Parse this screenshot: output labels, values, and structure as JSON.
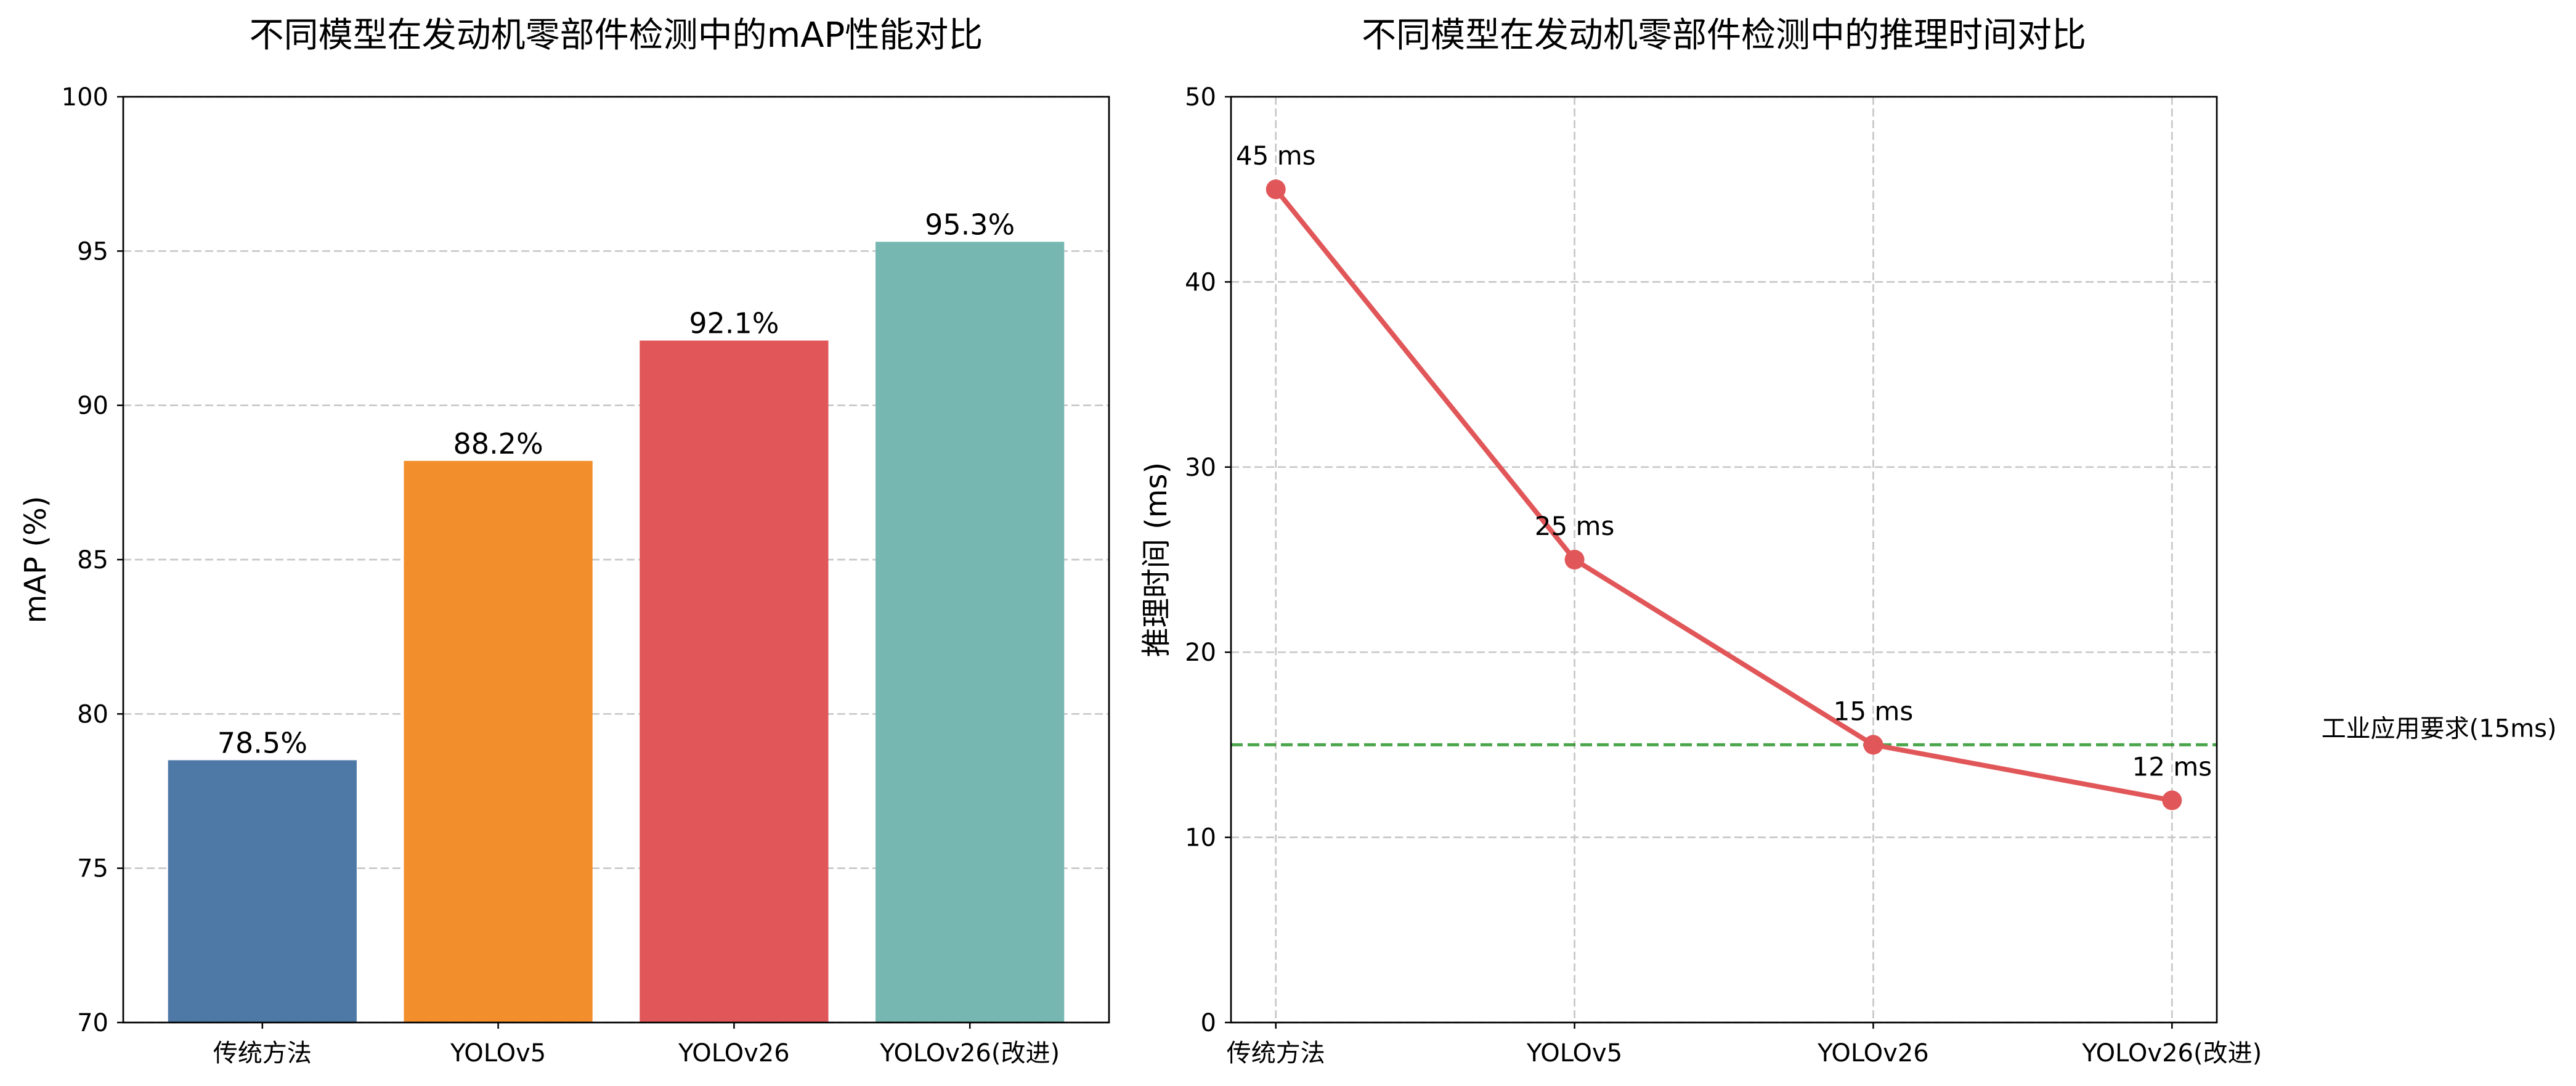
{
  "chart_data": [
    {
      "type": "bar",
      "title": "不同模型在发动机零部件检测中的mAP性能对比",
      "xlabel": "",
      "ylabel": "mAP (%)",
      "categories": [
        "传统方法",
        "YOLOv5",
        "YOLOv26",
        "YOLOv26(改进)"
      ],
      "values": [
        78.5,
        88.2,
        92.1,
        95.3
      ],
      "value_labels": [
        "78.5%",
        "88.2%",
        "92.1%",
        "95.3%"
      ],
      "colors": [
        "#4e79a7",
        "#f28e2b",
        "#e15759",
        "#76b7b2"
      ],
      "ylim": [
        70,
        100
      ],
      "yticks": [
        70,
        75,
        80,
        85,
        90,
        95,
        100
      ],
      "grid": {
        "x": false,
        "y": true
      }
    },
    {
      "type": "line",
      "title": "不同模型在发动机零部件检测中的推理时间对比",
      "xlabel": "",
      "ylabel": "推理时间 (ms)",
      "categories": [
        "传统方法",
        "YOLOv5",
        "YOLOv26",
        "YOLOv26(改进)"
      ],
      "values": [
        45,
        25,
        15,
        12
      ],
      "value_labels": [
        "45 ms",
        "25 ms",
        "15 ms",
        "12 ms"
      ],
      "color": "#e15759",
      "ylim": [
        0,
        50
      ],
      "yticks": [
        0,
        10,
        20,
        30,
        40,
        50
      ],
      "grid": {
        "x": true,
        "y": true
      },
      "reference_line": {
        "y": 15,
        "label": "工业应用要求(15ms)",
        "color": "#008000"
      }
    }
  ]
}
